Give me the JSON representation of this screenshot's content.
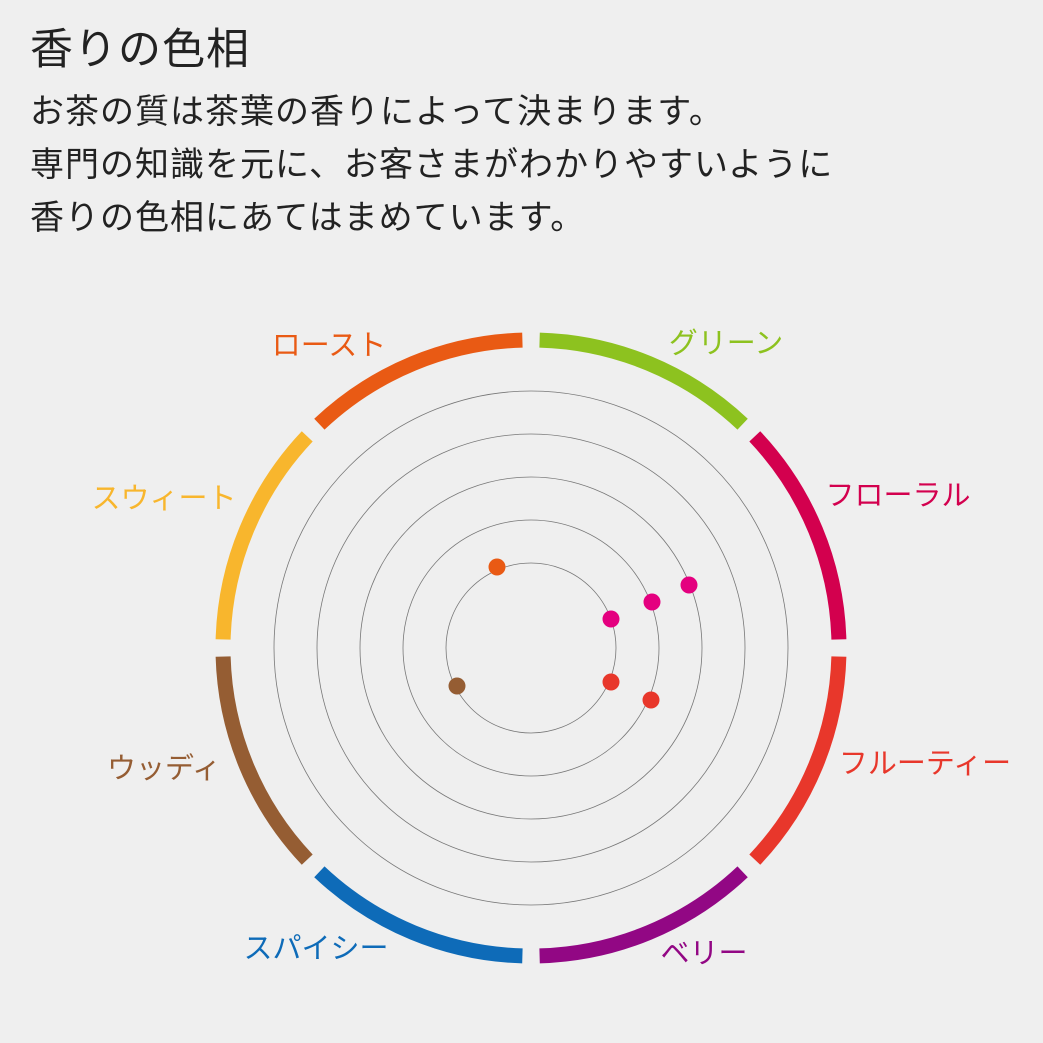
{
  "title": "香りの色相",
  "description": [
    "お茶の質は茶葉の香りによって決まります。",
    "専門の知識を元に、お客さまがわかりやすいように",
    "香りの色相にあてはまめています。"
  ],
  "segments": [
    {
      "label": "グリーン",
      "color": "#8dc21f"
    },
    {
      "label": "フローラル",
      "color": "#d3004e"
    },
    {
      "label": "フルーティー",
      "color": "#e8372b"
    },
    {
      "label": "ベリー",
      "color": "#920784"
    },
    {
      "label": "スパイシー",
      "color": "#0e6bb8"
    },
    {
      "label": "ウッディ",
      "color": "#955d33"
    },
    {
      "label": "スウィート",
      "color": "#f8b62d"
    },
    {
      "label": "ロースト",
      "color": "#e95a14"
    }
  ],
  "rings": 5,
  "points": [
    {
      "color": "#e95a14"
    },
    {
      "color": "#e4007f"
    },
    {
      "color": "#e4007f"
    },
    {
      "color": "#e4007f"
    },
    {
      "color": "#e8372b"
    },
    {
      "color": "#e8372b"
    },
    {
      "color": "#955d33"
    }
  ]
}
